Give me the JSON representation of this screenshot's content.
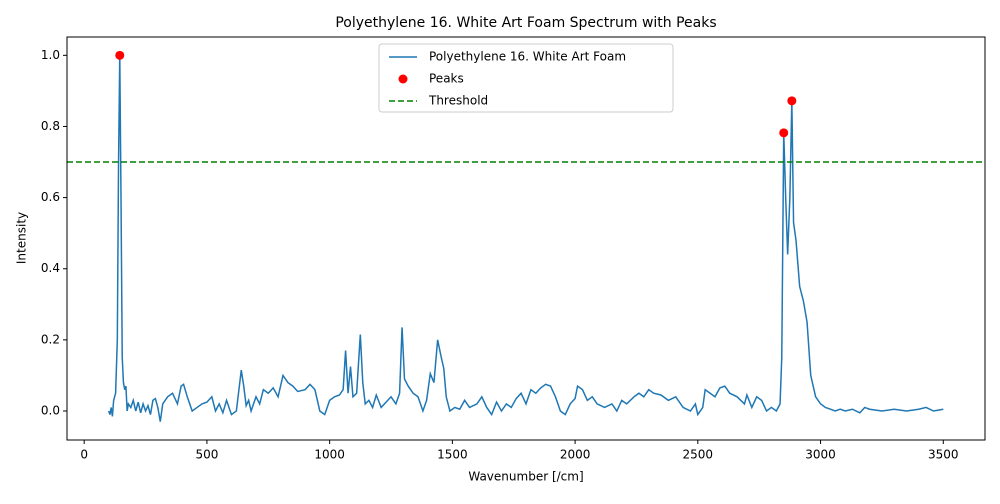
{
  "chart_data": {
    "type": "line",
    "title": "Polyethylene 16. White Art Foam Spectrum with Peaks",
    "xlabel": "Wavenumber [/cm]",
    "ylabel": "Intensity",
    "xlim": [
      -70,
      3670
    ],
    "ylim": [
      -0.0815,
      1.0515
    ],
    "xticks": [
      0,
      500,
      1000,
      1500,
      2000,
      2500,
      3000,
      3500
    ],
    "yticks": [
      {
        "value": 0,
        "label": "0.0"
      },
      {
        "value": 0.2,
        "label": "0.2"
      },
      {
        "value": 0.4,
        "label": "0.4"
      },
      {
        "value": 0.6,
        "label": "0.6"
      },
      {
        "value": 0.8,
        "label": "0.8"
      },
      {
        "value": 1.0,
        "label": "1.0"
      }
    ],
    "legend": "upper center",
    "series": [
      {
        "name": "Polyethylene 16. White Art Foam",
        "type": "line",
        "color": "#1f77b4",
        "x": [
          100,
          105,
          110,
          115,
          120,
          128,
          135,
          140,
          145,
          150,
          155,
          160,
          165,
          170,
          175,
          180,
          190,
          200,
          210,
          220,
          230,
          240,
          250,
          260,
          270,
          280,
          290,
          300,
          310,
          320,
          340,
          360,
          380,
          395,
          405,
          420,
          440,
          460,
          480,
          500,
          520,
          535,
          550,
          565,
          580,
          600,
          620,
          640,
          650,
          660,
          670,
          680,
          700,
          715,
          730,
          750,
          770,
          790,
          810,
          830,
          850,
          870,
          900,
          920,
          940,
          960,
          980,
          1000,
          1020,
          1040,
          1055,
          1065,
          1075,
          1085,
          1095,
          1110,
          1125,
          1135,
          1145,
          1160,
          1175,
          1190,
          1210,
          1230,
          1250,
          1270,
          1285,
          1295,
          1305,
          1320,
          1340,
          1360,
          1380,
          1395,
          1410,
          1425,
          1440,
          1455,
          1465,
          1475,
          1490,
          1510,
          1530,
          1550,
          1570,
          1600,
          1620,
          1640,
          1660,
          1680,
          1700,
          1720,
          1740,
          1760,
          1780,
          1800,
          1820,
          1840,
          1860,
          1880,
          1900,
          1920,
          1940,
          1960,
          1980,
          2000,
          2010,
          2030,
          2050,
          2070,
          2090,
          2120,
          2150,
          2170,
          2190,
          2210,
          2240,
          2260,
          2280,
          2300,
          2320,
          2350,
          2380,
          2410,
          2440,
          2470,
          2490,
          2500,
          2520,
          2530,
          2550,
          2570,
          2590,
          2610,
          2630,
          2660,
          2690,
          2700,
          2720,
          2740,
          2760,
          2780,
          2800,
          2820,
          2835,
          2842,
          2850,
          2858,
          2866,
          2875,
          2883,
          2890,
          2900,
          2915,
          2930,
          2945,
          2960,
          2980,
          3000,
          3020,
          3040,
          3060,
          3080,
          3100,
          3130,
          3160,
          3180,
          3200,
          3250,
          3300,
          3350,
          3400,
          3430,
          3460,
          3500
        ],
        "values": [
          0,
          -0.01,
          0.01,
          -0.015,
          0.03,
          0.05,
          0.2,
          0.7,
          1.0,
          0.6,
          0.15,
          0.08,
          0.06,
          0.07,
          0,
          0.02,
          0.01,
          0.03,
          0,
          0.025,
          -0.005,
          0.02,
          0,
          0.015,
          -0.01,
          0.03,
          0.035,
          0.01,
          -0.03,
          0.02,
          0.04,
          0.05,
          0.02,
          0.07,
          0.075,
          0.04,
          0,
          0.01,
          0.02,
          0.025,
          0.04,
          0,
          0.02,
          -0.005,
          0.03,
          -0.01,
          0,
          0.115,
          0.07,
          0.015,
          0.03,
          0,
          0.04,
          0.02,
          0.06,
          0.05,
          0.065,
          0.04,
          0.1,
          0.08,
          0.07,
          0.055,
          0.06,
          0.075,
          0.06,
          0,
          -0.01,
          0.03,
          0.04,
          0.045,
          0.06,
          0.17,
          0.05,
          0.125,
          0.04,
          0.05,
          0.215,
          0.08,
          0.02,
          0.03,
          0.01,
          0.045,
          0.01,
          0.025,
          0.04,
          0.02,
          0.05,
          0.235,
          0.09,
          0.07,
          0.05,
          0.04,
          0,
          0.03,
          0.105,
          0.08,
          0.2,
          0.15,
          0.12,
          0.04,
          0,
          0.01,
          0.005,
          0.03,
          0.01,
          0.02,
          0.04,
          0.01,
          -0.01,
          0.025,
          0,
          0.02,
          0.01,
          0.035,
          0.05,
          0.02,
          0.06,
          0.05,
          0.065,
          0.075,
          0.07,
          0.04,
          0,
          -0.01,
          0.02,
          0.035,
          0.07,
          0.06,
          0.03,
          0.04,
          0.02,
          0.01,
          0.02,
          0,
          0.03,
          0.02,
          0.04,
          0.05,
          0.04,
          0.06,
          0.05,
          0.045,
          0.03,
          0.04,
          0.01,
          0,
          0.02,
          -0.01,
          0.01,
          0.06,
          0.05,
          0.04,
          0.065,
          0.07,
          0.05,
          0.04,
          0.02,
          0.045,
          0.01,
          0.04,
          0.03,
          0,
          0.01,
          0,
          0.02,
          0.15,
          0.782,
          0.6,
          0.44,
          0.6,
          0.872,
          0.53,
          0.48,
          0.35,
          0.31,
          0.25,
          0.1,
          0.04,
          0.02,
          0.01,
          0.005,
          0,
          0.005,
          0,
          0.005,
          -0.005,
          0.01,
          0.005,
          0,
          0.005,
          0,
          0.005,
          0.01,
          0,
          0.005
        ]
      },
      {
        "name": "Peaks",
        "type": "scatter",
        "color": "#ff0000",
        "x": [
          145,
          2850,
          2883
        ],
        "values": [
          1.0,
          0.782,
          0.872
        ]
      },
      {
        "name": "Threshold",
        "type": "hline",
        "color": "#008000",
        "dashed": true,
        "value": 0.7
      }
    ]
  }
}
